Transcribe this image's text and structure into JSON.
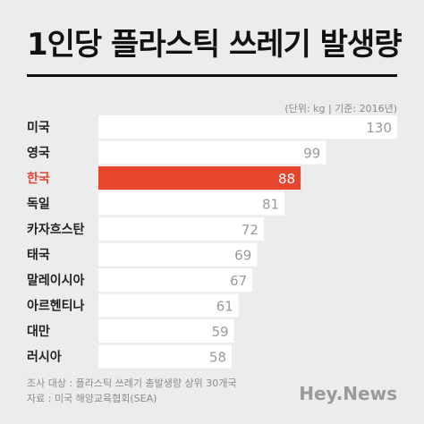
{
  "title": "1인당 플라스틱 쓰레기 발생량",
  "unit_note": "(단위: kg | 기준: 2016년)",
  "footer": {
    "line1": "조사 대상 : 플라스틱 쓰레기 총발생량 상위 30개국",
    "line2": "자료 : 미국 해양교육협회(SEA)"
  },
  "brand": "Hey.News",
  "colors": {
    "background": "#ececec",
    "bar": "#ffffff",
    "highlight": "#e8452f",
    "label": "#222222",
    "value": "#9a9a9a"
  },
  "chart_data": {
    "type": "bar",
    "orientation": "horizontal",
    "categories": [
      "미국",
      "영국",
      "한국",
      "독일",
      "카자흐스탄",
      "태국",
      "말레이시아",
      "아르헨티나",
      "대만",
      "러시아"
    ],
    "values": [
      130,
      99,
      88,
      81,
      72,
      69,
      67,
      61,
      59,
      58
    ],
    "highlight": "한국",
    "xlim": [
      0,
      130
    ],
    "grid": false
  }
}
